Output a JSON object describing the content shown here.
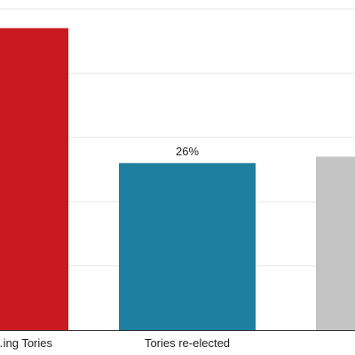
{
  "chart_data": {
    "type": "bar",
    "categories": [
      "…ing Tories",
      "Tories re-elected",
      ""
    ],
    "values": [
      47,
      26,
      27
    ],
    "data_labels": [
      "",
      "26%",
      ""
    ],
    "ylim": [
      0,
      50
    ],
    "grid": true,
    "legend": "none",
    "colors": [
      "#c91b1f",
      "#1f7fa0",
      "#c4c4c4"
    ]
  }
}
